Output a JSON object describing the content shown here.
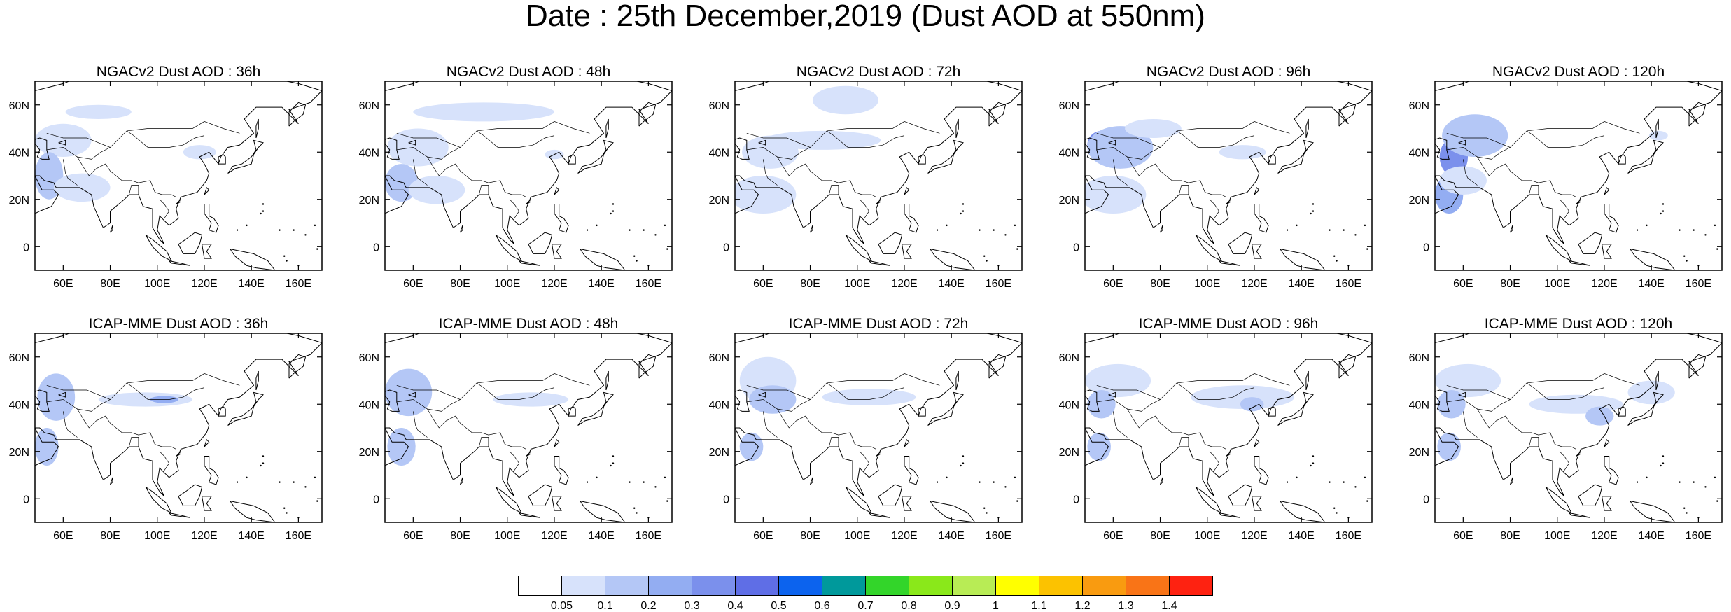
{
  "title": "Date : 25th December,2019 (Dust AOD at 550nm)",
  "colors": {
    "land": "#ffffff",
    "coastline": "#000000",
    "frame": "#000000"
  },
  "map": {
    "lon_range": [
      48,
      170
    ],
    "lat_range": [
      -10,
      70
    ],
    "lon_ticks": [
      60,
      80,
      100,
      120,
      140,
      160
    ],
    "lon_tick_labels": [
      "60E",
      "80E",
      "100E",
      "120E",
      "140E",
      "160E"
    ],
    "lat_ticks": [
      0,
      20,
      40,
      60
    ],
    "lat_tick_labels": [
      "0",
      "20N",
      "40N",
      "60N"
    ]
  },
  "colorbar": {
    "labels": [
      "0.05",
      "0.1",
      "0.2",
      "0.3",
      "0.4",
      "0.5",
      "0.6",
      "0.7",
      "0.8",
      "0.9",
      "1",
      "1.1",
      "1.2",
      "1.3",
      "1.4"
    ],
    "colors": [
      "#ffffff",
      "#d7e2fb",
      "#b4c7f6",
      "#93adf2",
      "#7b90ec",
      "#5f6ee6",
      "#0c63ee",
      "#00999b",
      "#33d52a",
      "#8ae81a",
      "#b8ec55",
      "#ffff00",
      "#fcc200",
      "#f99b10",
      "#f97417",
      "#fe2211"
    ]
  },
  "panels": [
    {
      "title": "NGACv2 Dust AOD : 36h",
      "blobs": [
        {
          "lon": 60,
          "lat": 45,
          "rx": 12,
          "ry": 7,
          "level": 1
        },
        {
          "lon": 54,
          "lat": 30,
          "rx": 6,
          "ry": 10,
          "level": 2
        },
        {
          "lon": 68,
          "lat": 25,
          "rx": 12,
          "ry": 6,
          "level": 1
        },
        {
          "lon": 75,
          "lat": 57,
          "rx": 14,
          "ry": 3,
          "level": 1
        },
        {
          "lon": 118,
          "lat": 40,
          "rx": 7,
          "ry": 3,
          "level": 1
        }
      ]
    },
    {
      "title": "NGACv2 Dust AOD : 48h",
      "blobs": [
        {
          "lon": 62,
          "lat": 42,
          "rx": 13,
          "ry": 8,
          "level": 1
        },
        {
          "lon": 55,
          "lat": 27,
          "rx": 7,
          "ry": 8,
          "level": 2
        },
        {
          "lon": 70,
          "lat": 24,
          "rx": 12,
          "ry": 6,
          "level": 1
        },
        {
          "lon": 90,
          "lat": 57,
          "rx": 30,
          "ry": 4,
          "level": 1
        },
        {
          "lon": 120,
          "lat": 39,
          "rx": 4,
          "ry": 2,
          "level": 1
        }
      ]
    },
    {
      "title": "NGACv2 Dust AOD : 72h",
      "blobs": [
        {
          "lon": 63,
          "lat": 40,
          "rx": 12,
          "ry": 7,
          "level": 1
        },
        {
          "lon": 60,
          "lat": 22,
          "rx": 14,
          "ry": 8,
          "level": 1
        },
        {
          "lon": 95,
          "lat": 62,
          "rx": 14,
          "ry": 6,
          "level": 1
        },
        {
          "lon": 85,
          "lat": 45,
          "rx": 25,
          "ry": 4,
          "level": 1
        }
      ]
    },
    {
      "title": "NGACv2 Dust AOD : 96h",
      "blobs": [
        {
          "lon": 55,
          "lat": 43,
          "rx": 6,
          "ry": 6,
          "level": 4
        },
        {
          "lon": 63,
          "lat": 42,
          "rx": 14,
          "ry": 9,
          "level": 2
        },
        {
          "lon": 60,
          "lat": 22,
          "rx": 14,
          "ry": 8,
          "level": 1
        },
        {
          "lon": 77,
          "lat": 50,
          "rx": 12,
          "ry": 4,
          "level": 1
        },
        {
          "lon": 115,
          "lat": 40,
          "rx": 10,
          "ry": 3,
          "level": 1
        }
      ]
    },
    {
      "title": "NGACv2 Dust AOD : 120h",
      "blobs": [
        {
          "lon": 56,
          "lat": 38,
          "rx": 6,
          "ry": 8,
          "level": 4
        },
        {
          "lon": 65,
          "lat": 47,
          "rx": 14,
          "ry": 9,
          "level": 2
        },
        {
          "lon": 54,
          "lat": 22,
          "rx": 6,
          "ry": 8,
          "level": 3
        },
        {
          "lon": 60,
          "lat": 28,
          "rx": 10,
          "ry": 6,
          "level": 1
        },
        {
          "lon": 143,
          "lat": 47,
          "rx": 4,
          "ry": 2,
          "level": 1
        }
      ]
    },
    {
      "title": "ICAP-MME Dust AOD : 36h",
      "blobs": [
        {
          "lon": 57,
          "lat": 43,
          "rx": 8,
          "ry": 10,
          "level": 2
        },
        {
          "lon": 53,
          "lat": 22,
          "rx": 5,
          "ry": 8,
          "level": 2
        },
        {
          "lon": 95,
          "lat": 42,
          "rx": 20,
          "ry": 3,
          "level": 1
        },
        {
          "lon": 103,
          "lat": 42,
          "rx": 6,
          "ry": 1.5,
          "level": 3
        }
      ]
    },
    {
      "title": "ICAP-MME Dust AOD : 48h",
      "blobs": [
        {
          "lon": 58,
          "lat": 45,
          "rx": 10,
          "ry": 10,
          "level": 2
        },
        {
          "lon": 55,
          "lat": 22,
          "rx": 6,
          "ry": 8,
          "level": 2
        },
        {
          "lon": 110,
          "lat": 42,
          "rx": 16,
          "ry": 3,
          "level": 1
        }
      ]
    },
    {
      "title": "ICAP-MME Dust AOD : 72h",
      "blobs": [
        {
          "lon": 62,
          "lat": 50,
          "rx": 12,
          "ry": 10,
          "level": 1
        },
        {
          "lon": 64,
          "lat": 42,
          "rx": 10,
          "ry": 6,
          "level": 2
        },
        {
          "lon": 55,
          "lat": 22,
          "rx": 5,
          "ry": 6,
          "level": 2
        },
        {
          "lon": 105,
          "lat": 43,
          "rx": 20,
          "ry": 3.5,
          "level": 1
        }
      ]
    },
    {
      "title": "ICAP-MME Dust AOD : 96h",
      "blobs": [
        {
          "lon": 62,
          "lat": 50,
          "rx": 14,
          "ry": 7,
          "level": 1
        },
        {
          "lon": 55,
          "lat": 40,
          "rx": 6,
          "ry": 6,
          "level": 2
        },
        {
          "lon": 54,
          "lat": 22,
          "rx": 5,
          "ry": 6,
          "level": 2
        },
        {
          "lon": 115,
          "lat": 43,
          "rx": 22,
          "ry": 5,
          "level": 1
        },
        {
          "lon": 119,
          "lat": 40,
          "rx": 5,
          "ry": 3,
          "level": 2
        }
      ]
    },
    {
      "title": "ICAP-MME Dust AOD : 120h",
      "blobs": [
        {
          "lon": 62,
          "lat": 50,
          "rx": 14,
          "ry": 7,
          "level": 1
        },
        {
          "lon": 55,
          "lat": 40,
          "rx": 6,
          "ry": 6,
          "level": 2
        },
        {
          "lon": 54,
          "lat": 22,
          "rx": 5,
          "ry": 6,
          "level": 2
        },
        {
          "lon": 108,
          "lat": 40,
          "rx": 20,
          "ry": 4,
          "level": 1
        },
        {
          "lon": 118,
          "lat": 35,
          "rx": 6,
          "ry": 4,
          "level": 2
        },
        {
          "lon": 140,
          "lat": 45,
          "rx": 10,
          "ry": 5,
          "level": 1
        }
      ]
    }
  ]
}
